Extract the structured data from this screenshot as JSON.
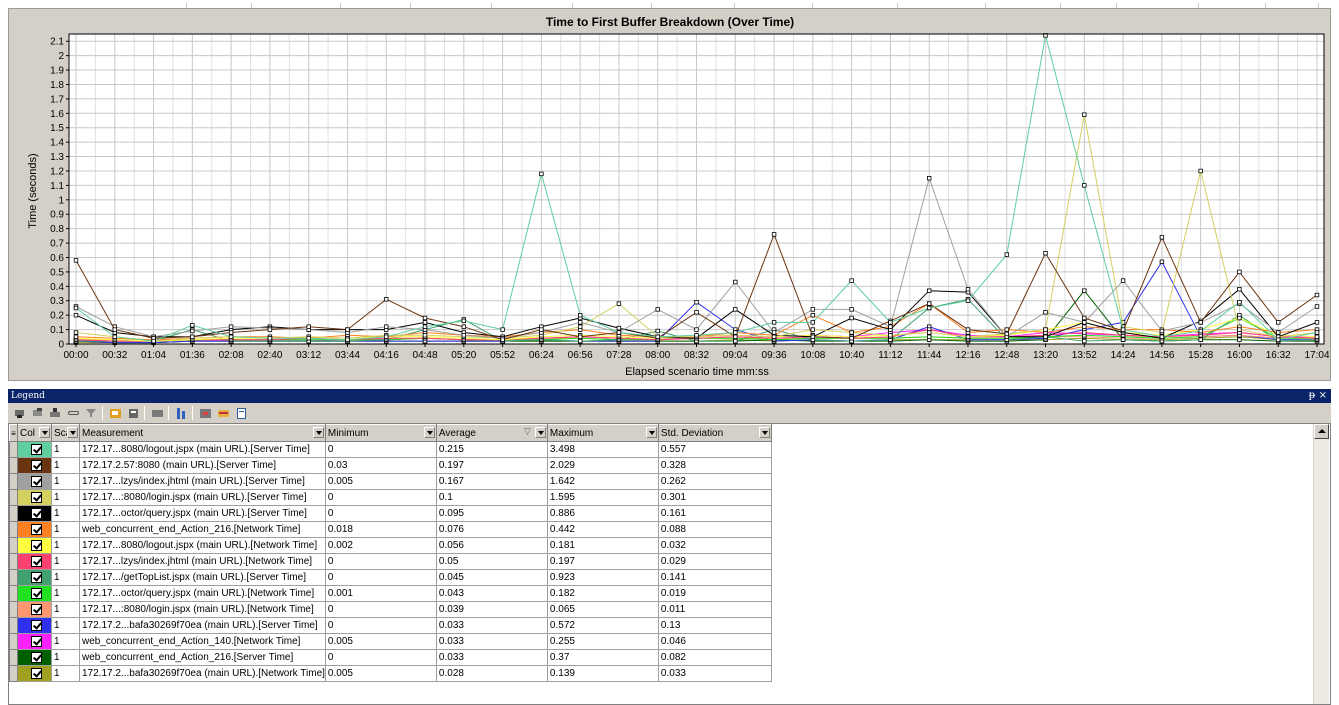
{
  "chart": {
    "title": "Time to First Buffer Breakdown (Over Time)",
    "ylabel": "Time (seconds)",
    "xlabel": "Elapsed scenario time mm:ss"
  },
  "chart_data": {
    "type": "line",
    "title": "Time to First Buffer Breakdown (Over Time)",
    "xlabel": "Elapsed scenario time mm:ss",
    "ylabel": "Time (seconds)",
    "ylim": [
      0,
      2.15
    ],
    "yticks": [
      "0",
      "0.1",
      "0.2",
      "0.3",
      "0.4",
      "0.5",
      "0.6",
      "0.7",
      "0.8",
      "0.9",
      "1",
      "1.1",
      "1.2",
      "1.3",
      "1.4",
      "1.5",
      "1.6",
      "1.7",
      "1.8",
      "1.9",
      "2",
      "2.1"
    ],
    "categories": [
      "00:00",
      "00:32",
      "01:04",
      "01:36",
      "02:08",
      "02:40",
      "03:12",
      "03:44",
      "04:16",
      "04:48",
      "05:20",
      "05:52",
      "06:24",
      "06:56",
      "07:28",
      "08:00",
      "08:32",
      "09:04",
      "09:36",
      "10:08",
      "10:40",
      "11:12",
      "11:44",
      "12:16",
      "12:48",
      "13:20",
      "13:52",
      "14:24",
      "14:56",
      "15:28",
      "16:00",
      "16:32",
      "17:04"
    ],
    "grid": true,
    "series": [
      {
        "color": "#5fcf9f",
        "values": [
          0.25,
          0.05,
          0.02,
          0.13,
          0.05,
          0.04,
          0.04,
          0.03,
          0.05,
          0.12,
          0.16,
          0.1,
          1.18,
          0.2,
          0.08,
          0.05,
          0.06,
          0.08,
          0.15,
          0.15,
          0.44,
          0.15,
          0.25,
          0.3,
          0.62,
          2.14,
          1.1,
          0.1,
          0.05,
          0.09,
          0.29,
          0.03,
          0.08
        ]
      },
      {
        "color": "#6b3410",
        "values": [
          0.58,
          0.1,
          0.04,
          0.05,
          0.08,
          0.1,
          0.12,
          0.1,
          0.31,
          0.18,
          0.12,
          0.03,
          0.1,
          0.05,
          0.08,
          0.04,
          0.22,
          0.05,
          0.76,
          0.05,
          0.04,
          0.16,
          0.28,
          0.1,
          0.07,
          0.63,
          0.18,
          0.09,
          0.74,
          0.15,
          0.5,
          0.15,
          0.34
        ]
      },
      {
        "color": "#a0a0a0",
        "values": [
          0.26,
          0.12,
          0.05,
          0.09,
          0.12,
          0.11,
          0.1,
          0.08,
          0.12,
          0.1,
          0.06,
          0.04,
          0.08,
          0.15,
          0.08,
          0.24,
          0.1,
          0.43,
          0.08,
          0.24,
          0.24,
          0.12,
          1.15,
          0.38,
          0.05,
          0.22,
          0.15,
          0.44,
          0.09,
          0.15,
          0.28,
          0.08,
          0.26
        ]
      },
      {
        "color": "#d4d060",
        "values": [
          0.08,
          0.05,
          0.02,
          0.04,
          0.05,
          0.04,
          0.05,
          0.04,
          0.06,
          0.06,
          0.05,
          0.04,
          0.06,
          0.12,
          0.28,
          0.05,
          0.05,
          0.06,
          0.05,
          0.1,
          0.08,
          0.06,
          0.08,
          0.05,
          0.07,
          0.1,
          1.59,
          0.12,
          0.08,
          1.2,
          0.1,
          0.05,
          0.08
        ]
      },
      {
        "color": "#000000",
        "values": [
          0.2,
          0.08,
          0.05,
          0.05,
          0.1,
          0.12,
          0.1,
          0.1,
          0.1,
          0.15,
          0.08,
          0.05,
          0.12,
          0.18,
          0.11,
          0.05,
          0.04,
          0.24,
          0.06,
          0.05,
          0.18,
          0.1,
          0.37,
          0.36,
          0.05,
          0.05,
          0.15,
          0.08,
          0.04,
          0.16,
          0.38,
          0.05,
          0.15
        ]
      },
      {
        "color": "#ff8020",
        "values": [
          0.05,
          0.04,
          0.03,
          0.04,
          0.05,
          0.05,
          0.04,
          0.06,
          0.05,
          0.08,
          0.06,
          0.05,
          0.08,
          0.1,
          0.06,
          0.05,
          0.05,
          0.08,
          0.06,
          0.2,
          0.08,
          0.12,
          0.28,
          0.08,
          0.1,
          0.08,
          0.12,
          0.1,
          0.1,
          0.08,
          0.12,
          0.08,
          0.1
        ]
      },
      {
        "color": "#ffff40",
        "values": [
          0.04,
          0.03,
          0.02,
          0.03,
          0.04,
          0.04,
          0.05,
          0.04,
          0.05,
          0.05,
          0.04,
          0.03,
          0.05,
          0.06,
          0.05,
          0.04,
          0.05,
          0.06,
          0.05,
          0.06,
          0.05,
          0.06,
          0.08,
          0.05,
          0.06,
          0.1,
          0.15,
          0.08,
          0.06,
          0.1,
          0.18,
          0.06,
          0.05
        ]
      },
      {
        "color": "#ff4070",
        "values": [
          0.03,
          0.02,
          0.02,
          0.03,
          0.03,
          0.03,
          0.04,
          0.03,
          0.04,
          0.04,
          0.03,
          0.03,
          0.04,
          0.05,
          0.04,
          0.03,
          0.04,
          0.05,
          0.04,
          0.05,
          0.04,
          0.05,
          0.1,
          0.05,
          0.05,
          0.06,
          0.08,
          0.06,
          0.05,
          0.06,
          0.08,
          0.05,
          0.04
        ]
      },
      {
        "color": "#40a070",
        "values": [
          0.02,
          0.02,
          0.02,
          0.1,
          0.02,
          0.02,
          0.02,
          0.02,
          0.03,
          0.1,
          0.17,
          0.02,
          0.03,
          0.02,
          0.03,
          0.09,
          0.02,
          0.02,
          0.1,
          0.03,
          0.02,
          0.03,
          0.25,
          0.31,
          0.03,
          0.05,
          0.02,
          0.03,
          0.02,
          0.03,
          0.2,
          0.02,
          0.03
        ]
      },
      {
        "color": "#20e020",
        "values": [
          0.03,
          0.02,
          0.02,
          0.03,
          0.03,
          0.03,
          0.03,
          0.03,
          0.03,
          0.04,
          0.03,
          0.03,
          0.03,
          0.04,
          0.03,
          0.03,
          0.04,
          0.04,
          0.03,
          0.04,
          0.04,
          0.04,
          0.05,
          0.04,
          0.04,
          0.05,
          0.06,
          0.05,
          0.04,
          0.05,
          0.18,
          0.04,
          0.04
        ]
      },
      {
        "color": "#ff9870",
        "values": [
          0.03,
          0.03,
          0.03,
          0.03,
          0.03,
          0.03,
          0.04,
          0.03,
          0.03,
          0.04,
          0.03,
          0.03,
          0.04,
          0.04,
          0.03,
          0.03,
          0.04,
          0.04,
          0.04,
          0.04,
          0.04,
          0.04,
          0.05,
          0.04,
          0.04,
          0.05,
          0.05,
          0.04,
          0.04,
          0.05,
          0.06,
          0.04,
          0.04
        ]
      },
      {
        "color": "#3030f0",
        "values": [
          0.02,
          0.01,
          0.01,
          0.02,
          0.02,
          0.02,
          0.02,
          0.02,
          0.02,
          0.02,
          0.02,
          0.02,
          0.03,
          0.02,
          0.02,
          0.02,
          0.29,
          0.1,
          0.02,
          0.03,
          0.02,
          0.03,
          0.12,
          0.03,
          0.03,
          0.04,
          0.1,
          0.15,
          0.57,
          0.05,
          0.06,
          0.03,
          0.03
        ]
      },
      {
        "color": "#ff20ff",
        "values": [
          0.02,
          0.02,
          0.02,
          0.03,
          0.02,
          0.03,
          0.03,
          0.02,
          0.03,
          0.04,
          0.03,
          0.03,
          0.04,
          0.05,
          0.04,
          0.03,
          0.05,
          0.06,
          0.05,
          0.06,
          0.05,
          0.08,
          0.1,
          0.06,
          0.05,
          0.08,
          0.07,
          0.06,
          0.05,
          0.07,
          0.08,
          0.05,
          0.05
        ]
      },
      {
        "color": "#006000",
        "values": [
          0.02,
          0.01,
          0.01,
          0.02,
          0.02,
          0.02,
          0.02,
          0.02,
          0.02,
          0.02,
          0.02,
          0.02,
          0.02,
          0.02,
          0.02,
          0.02,
          0.02,
          0.02,
          0.03,
          0.02,
          0.02,
          0.02,
          0.03,
          0.02,
          0.02,
          0.03,
          0.37,
          0.03,
          0.02,
          0.03,
          0.03,
          0.02,
          0.02
        ]
      },
      {
        "color": "#a0a020",
        "values": [
          0.01,
          0.01,
          0.01,
          0.02,
          0.02,
          0.02,
          0.02,
          0.02,
          0.02,
          0.02,
          0.02,
          0.02,
          0.02,
          0.02,
          0.02,
          0.02,
          0.02,
          0.03,
          0.02,
          0.03,
          0.02,
          0.03,
          0.03,
          0.03,
          0.03,
          0.03,
          0.04,
          0.03,
          0.03,
          0.04,
          0.05,
          0.03,
          0.03
        ]
      }
    ]
  },
  "legend": {
    "title": "Legend",
    "pin_label": "ᵽ",
    "close_label": "×",
    "columns": {
      "color": "Col",
      "scale": "Sca",
      "measurement": "Measurement",
      "minimum": "Minimum",
      "average": "Average",
      "maximum": "Maximum",
      "std_dev": "Std. Deviation"
    },
    "rows": [
      {
        "color": "#5fcf9f",
        "scale": "1",
        "measurement": "172.17...8080/logout.jspx (main URL).[Server Time]",
        "minimum": "0",
        "average": "0.215",
        "maximum": "3.498",
        "std_dev": "0.557"
      },
      {
        "color": "#6b3410",
        "scale": "1",
        "measurement": "172.17.2.57:8080 (main URL).[Server Time]",
        "minimum": "0.03",
        "average": "0.197",
        "maximum": "2.029",
        "std_dev": "0.328"
      },
      {
        "color": "#a0a0a0",
        "scale": "1",
        "measurement": "172.17...lzys/index.jhtml (main URL).[Server Time]",
        "minimum": "0.005",
        "average": "0.167",
        "maximum": "1.642",
        "std_dev": "0.262"
      },
      {
        "color": "#d4d060",
        "scale": "1",
        "measurement": "172.17...:8080/login.jspx (main URL).[Server Time]",
        "minimum": "0",
        "average": "0.1",
        "maximum": "1.595",
        "std_dev": "0.301"
      },
      {
        "color": "#000000",
        "scale": "1",
        "measurement": "172.17...octor/query.jspx (main URL).[Server Time]",
        "minimum": "0",
        "average": "0.095",
        "maximum": "0.886",
        "std_dev": "0.161"
      },
      {
        "color": "#ff8020",
        "scale": "1",
        "measurement": "web_concurrent_end_Action_216.[Network Time]",
        "minimum": "0.018",
        "average": "0.076",
        "maximum": "0.442",
        "std_dev": "0.088"
      },
      {
        "color": "#ffff40",
        "scale": "1",
        "measurement": "172.17...8080/logout.jspx (main URL).[Network Time]",
        "minimum": "0.002",
        "average": "0.056",
        "maximum": "0.181",
        "std_dev": "0.032"
      },
      {
        "color": "#ff4070",
        "scale": "1",
        "measurement": "172.17...lzys/index.jhtml (main URL).[Network Time]",
        "minimum": "0",
        "average": "0.05",
        "maximum": "0.197",
        "std_dev": "0.029"
      },
      {
        "color": "#40a070",
        "scale": "1",
        "measurement": "172.17.../getTopList.jspx (main URL).[Server Time]",
        "minimum": "0",
        "average": "0.045",
        "maximum": "0.923",
        "std_dev": "0.141"
      },
      {
        "color": "#20e020",
        "scale": "1",
        "measurement": "172.17...octor/query.jspx (main URL).[Network Time]",
        "minimum": "0.001",
        "average": "0.043",
        "maximum": "0.182",
        "std_dev": "0.019"
      },
      {
        "color": "#ff9870",
        "scale": "1",
        "measurement": "172.17...:8080/login.jspx (main URL).[Network Time]",
        "minimum": "0",
        "average": "0.039",
        "maximum": "0.065",
        "std_dev": "0.011"
      },
      {
        "color": "#3030f0",
        "scale": "1",
        "measurement": "172.17.2...bafa30269f70ea (main URL).[Server Time]",
        "minimum": "0",
        "average": "0.033",
        "maximum": "0.572",
        "std_dev": "0.13"
      },
      {
        "color": "#ff20ff",
        "scale": "1",
        "measurement": "web_concurrent_end_Action_140.[Network Time]",
        "minimum": "0.005",
        "average": "0.033",
        "maximum": "0.255",
        "std_dev": "0.046"
      },
      {
        "color": "#006000",
        "scale": "1",
        "measurement": "web_concurrent_end_Action_216.[Server Time]",
        "minimum": "0",
        "average": "0.033",
        "maximum": "0.37",
        "std_dev": "0.082"
      },
      {
        "color": "#a0a020",
        "scale": "1",
        "measurement": "172.17.2...bafa30269f70ea (main URL).[Network Time]",
        "minimum": "0.005",
        "average": "0.028",
        "maximum": "0.139",
        "std_dev": "0.033"
      }
    ]
  },
  "toolbar": {
    "icons": [
      "show-all-icon",
      "hide-all-icon",
      "show-selected-icon",
      "configure-icon",
      "filter-icon",
      "highlight-icon",
      "properties-icon",
      "animate-icon",
      "autocorrelate-icon",
      "export-icon",
      "copy-icon",
      "columns-icon"
    ]
  }
}
